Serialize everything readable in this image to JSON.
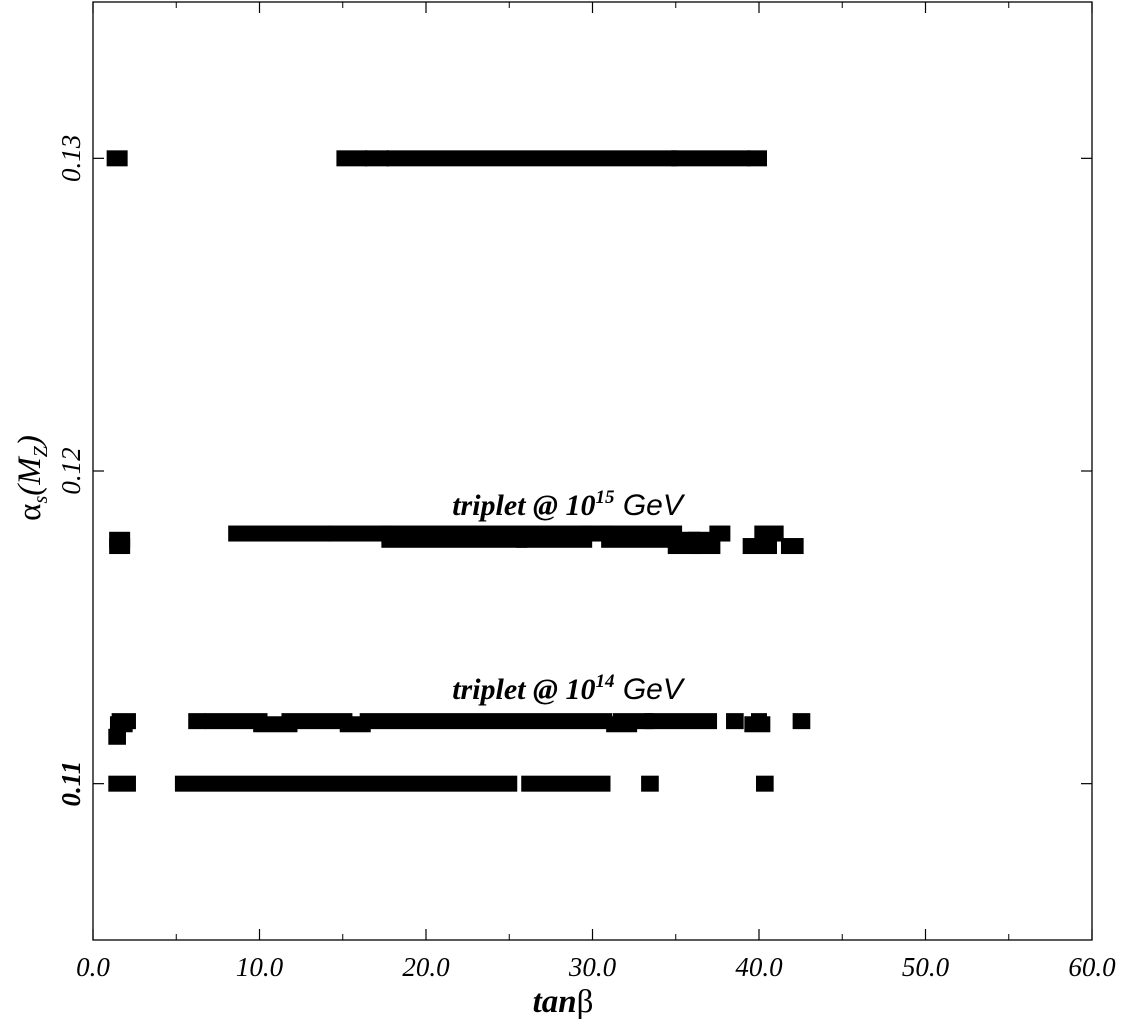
{
  "chart_data": {
    "type": "scatter",
    "xlabel": {
      "italic_bold": "tan",
      "symbol": "β"
    },
    "ylabel": {
      "symbol": "α",
      "sub1": "s",
      "mid": "(M",
      "sub2": "Z",
      "end": ")"
    },
    "xlim": [
      0,
      60
    ],
    "ylim": [
      0.105,
      0.135
    ],
    "x_ticks": [
      0,
      10,
      20,
      30,
      40,
      50,
      60
    ],
    "x_tick_labels": [
      "0.0",
      "10.0",
      "20.0",
      "30.0",
      "40.0",
      "50.0",
      "60.0"
    ],
    "y_ticks": [
      0.11,
      0.12,
      0.13
    ],
    "y_tick_labels": [
      "0.11",
      "0.12",
      "0.13"
    ],
    "grid": false,
    "annotations": [
      {
        "pre": "triplet @ 10",
        "sup": "15",
        "post": " GeV",
        "x": 28.5,
        "y": 0.1186
      },
      {
        "pre": "triplet @ 10",
        "sup": "14",
        "post": " GeV",
        "x": 28.5,
        "y": 0.1127
      }
    ],
    "series": [
      {
        "marker": "square",
        "segments": [
          {
            "y": 0.13,
            "x": [
              [
                1.3,
                1.6
              ],
              [
                15.1,
                16.0
              ],
              [
                16.8,
                17.3
              ],
              [
                18.1,
                34.6
              ],
              [
                35.2,
                39.0
              ],
              [
                39.8,
                40.0
              ]
            ]
          },
          {
            "y": 0.118,
            "x": [
              [
                8.6,
                13.8
              ],
              [
                14.6,
                17.5
              ],
              [
                17.8,
                29.5
              ],
              [
                29.8,
                30.7
              ],
              [
                31.0,
                34.9
              ],
              [
                37.5,
                37.8
              ],
              [
                40.2,
                41.0
              ]
            ]
          },
          {
            "y": 0.1178,
            "x": [
              [
                1.45,
                1.75
              ],
              [
                17.8,
                25.6
              ],
              [
                25.9,
                29.5
              ],
              [
                31.0,
                36.0
              ],
              [
                36.2,
                36.6
              ]
            ]
          },
          {
            "y": 0.1176,
            "x": [
              [
                1.45,
                1.75
              ],
              [
                35.0,
                35.9
              ],
              [
                36.6,
                37.2
              ],
              [
                39.5,
                40.6
              ],
              [
                41.8,
                42.2
              ]
            ]
          },
          {
            "y": 0.112,
            "x": [
              [
                1.6,
                2.1
              ],
              [
                6.2,
                6.3
              ],
              [
                7.2,
                10.0
              ],
              [
                11.8,
                15.1
              ],
              [
                16.5,
                30.7
              ],
              [
                31.7,
                33.2
              ],
              [
                33.6,
                37.0
              ],
              [
                38.5,
                38.6
              ],
              [
                40.0,
                40.0
              ],
              [
                42.5,
                42.6
              ]
            ]
          },
          {
            "y": 0.1119,
            "x": [
              [
                1.5,
                1.9
              ],
              [
                10.1,
                11.8
              ],
              [
                15.3,
                16.2
              ],
              [
                31.3,
                32.2
              ],
              [
                39.6,
                40.2
              ]
            ]
          },
          {
            "y": 0.1115,
            "x": [
              [
                1.4,
                1.5
              ]
            ]
          },
          {
            "y": 0.11,
            "x": [
              [
                1.4,
                2.1
              ],
              [
                5.4,
                25.0
              ],
              [
                26.2,
                30.6
              ],
              [
                33.4,
                33.5
              ],
              [
                40.3,
                40.4
              ]
            ]
          }
        ]
      }
    ]
  }
}
